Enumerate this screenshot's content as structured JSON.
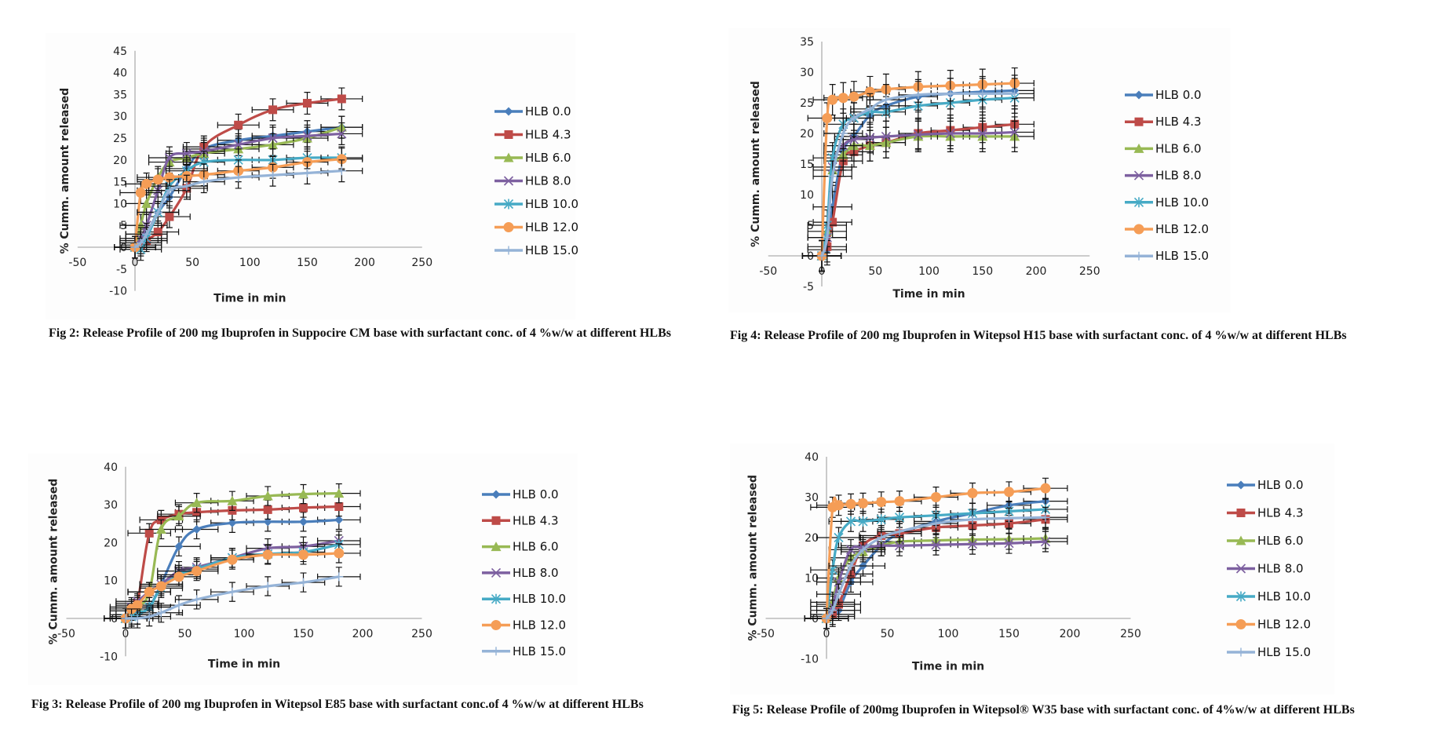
{
  "series_style": [
    {
      "name": "HLB 0.0",
      "color": "#4a7ebb",
      "marker": "diamond"
    },
    {
      "name": "HLB 4.3",
      "color": "#be4b48",
      "marker": "square"
    },
    {
      "name": "HLB 6.0",
      "color": "#98b954",
      "marker": "triangle"
    },
    {
      "name": "HLB 8.0",
      "color": "#7d60a0",
      "marker": "x"
    },
    {
      "name": "HLB 10.0",
      "color": "#46aac5",
      "marker": "star"
    },
    {
      "name": "HLB 12.0",
      "color": "#f59d56",
      "marker": "circle"
    },
    {
      "name": "HLB 15.0",
      "color": "#95b3d7",
      "marker": "plus"
    }
  ],
  "chart_data": [
    {
      "id": "fig2",
      "type": "line",
      "title": "",
      "caption": "Fig 2: Release Profile of 200 mg Ibuprofen in Suppocire CM base with surfactant conc. of 4 %w/w at different HLBs",
      "xlabel": "Time in min",
      "ylabel": "% Cumm. amount released",
      "xlim": [
        -50,
        250
      ],
      "ylim": [
        -10,
        45
      ],
      "xticks": [
        -50,
        0,
        50,
        100,
        150,
        200,
        250
      ],
      "yticks": [
        -10,
        -5,
        0,
        5,
        10,
        15,
        20,
        25,
        30,
        35,
        40,
        45
      ],
      "grid": false,
      "legend": "right",
      "error_bars": true,
      "x": [
        0,
        5,
        10,
        20,
        30,
        45,
        60,
        90,
        120,
        150,
        180
      ],
      "series": [
        {
          "name": "HLB 0.0",
          "values": [
            0,
            1.5,
            3,
            8,
            11.5,
            18,
            22.5,
            24.5,
            25.5,
            26.5,
            27.5
          ]
        },
        {
          "name": "HLB 4.3",
          "values": [
            0,
            0.5,
            1.5,
            3.5,
            7,
            13.5,
            23,
            28,
            31.5,
            33,
            34
          ]
        },
        {
          "name": "HLB 6.0",
          "values": [
            0,
            5,
            10,
            16,
            19.5,
            20.5,
            21.5,
            22.5,
            23.5,
            25,
            27.5
          ]
        },
        {
          "name": "HLB 8.0",
          "values": [
            0,
            2,
            5,
            13,
            20.5,
            21.5,
            22,
            23.5,
            25,
            25.5,
            26
          ]
        },
        {
          "name": "HLB 10.0",
          "values": [
            0,
            -0.5,
            2,
            8,
            14,
            17.5,
            19.5,
            20,
            20,
            20.5,
            20.5
          ]
        },
        {
          "name": "HLB 12.0",
          "values": [
            0,
            12.5,
            14.5,
            15.5,
            16,
            16.3,
            16.6,
            17.5,
            18.3,
            19.5,
            20.2
          ]
        },
        {
          "name": "HLB 15.0",
          "values": [
            0,
            1,
            3,
            8,
            13,
            14,
            15,
            16,
            16.5,
            17,
            17.5
          ]
        }
      ]
    },
    {
      "id": "fig4",
      "type": "line",
      "title": "",
      "caption": "Fig 4: Release Profile of 200 mg Ibuprofen in Witepsol H15 base with surfactant conc. of 4 %w/w at different HLBs",
      "xlabel": "Time in min",
      "ylabel": "% Cumm. amount released",
      "xlim": [
        -50,
        250
      ],
      "ylim": [
        -5,
        35
      ],
      "xticks": [
        -50,
        0,
        50,
        100,
        150,
        200,
        250
      ],
      "yticks": [
        -5,
        0,
        5,
        10,
        15,
        20,
        25,
        30,
        35
      ],
      "grid": false,
      "legend": "right",
      "error_bars": true,
      "x": [
        0,
        5,
        10,
        20,
        30,
        45,
        60,
        90,
        120,
        150,
        180
      ],
      "series": [
        {
          "name": "HLB 0.0",
          "values": [
            0,
            1,
            8,
            17,
            19.5,
            23,
            24.5,
            26,
            26.5,
            26.8,
            27
          ]
        },
        {
          "name": "HLB 4.3",
          "values": [
            0,
            1.5,
            5.5,
            15.5,
            17,
            18,
            18.5,
            20,
            20.5,
            21,
            21.5
          ]
        },
        {
          "name": "HLB 6.0",
          "values": [
            0,
            4,
            14,
            16.5,
            18,
            18,
            18.5,
            19.5,
            19.5,
            19.5,
            19.5
          ]
        },
        {
          "name": "HLB 8.0",
          "values": [
            0,
            3,
            14.5,
            18,
            19,
            19.3,
            19.5,
            19.8,
            20,
            20,
            20.2
          ]
        },
        {
          "name": "HLB 10.0",
          "values": [
            0,
            5,
            16,
            21.5,
            22.5,
            23.5,
            23.5,
            24.5,
            25,
            25.5,
            25.8
          ]
        },
        {
          "name": "HLB 12.0",
          "values": [
            0,
            22.5,
            25.5,
            25.8,
            26,
            26.8,
            27.2,
            27.6,
            27.8,
            28,
            28.2
          ]
        },
        {
          "name": "HLB 15.0",
          "values": [
            0,
            3,
            13,
            20,
            22.5,
            24,
            25.5,
            26.3,
            26.5,
            26.5,
            26.5
          ]
        }
      ]
    },
    {
      "id": "fig3",
      "type": "line",
      "title": "",
      "caption": "Fig 3: Release Profile of 200 mg Ibuprofen in Witepsol E85 base with surfactant conc.of 4 %w/w at different HLBs",
      "xlabel": "Time in min",
      "ylabel": "% Cumm. amount released",
      "xlim": [
        -50,
        250
      ],
      "ylim": [
        -10,
        40
      ],
      "xticks": [
        -50,
        0,
        50,
        100,
        150,
        200,
        250
      ],
      "yticks": [
        -10,
        0,
        10,
        20,
        30,
        40
      ],
      "grid": false,
      "legend": "right",
      "error_bars": true,
      "x": [
        0,
        5,
        10,
        20,
        30,
        45,
        60,
        90,
        120,
        150,
        180
      ],
      "series": [
        {
          "name": "HLB 0.0",
          "values": [
            0,
            0.5,
            1,
            3,
            9,
            19,
            23.5,
            25.2,
            25.5,
            25.5,
            26
          ]
        },
        {
          "name": "HLB 4.3",
          "values": [
            0,
            2,
            4,
            22.5,
            26,
            27.5,
            28,
            28.5,
            28.7,
            29.2,
            29.5
          ]
        },
        {
          "name": "HLB 6.0",
          "values": [
            0,
            1,
            3,
            7,
            23.5,
            27,
            30.5,
            31,
            32.3,
            32.8,
            33
          ]
        },
        {
          "name": "HLB 8.0",
          "values": [
            0,
            3,
            4.5,
            7,
            9,
            12.5,
            13.5,
            16,
            18.5,
            19,
            20.5
          ]
        },
        {
          "name": "HLB 10.0",
          "values": [
            0,
            0.5,
            1,
            3,
            8,
            11.5,
            13,
            16,
            17,
            17.5,
            19.5
          ]
        },
        {
          "name": "HLB 12.0",
          "values": [
            0,
            2.5,
            3.5,
            7,
            8.5,
            11,
            12.5,
            15.5,
            16.8,
            16.8,
            17.2
          ]
        },
        {
          "name": "HLB 15.0",
          "values": [
            0,
            0,
            0,
            0.5,
            1.5,
            3.5,
            5,
            7,
            8.5,
            9.5,
            11
          ]
        }
      ]
    },
    {
      "id": "fig5",
      "type": "line",
      "title": "",
      "caption": "Fig 5: Release Profile of 200mg Ibuprofen in Witepsol® W35 base with surfactant conc. of 4%w/w at different HLBs",
      "xlabel": "Time in min",
      "ylabel": "% Cumm. amount released",
      "xlim": [
        -50,
        250
      ],
      "ylim": [
        -10,
        40
      ],
      "xticks": [
        -50,
        0,
        50,
        100,
        150,
        200,
        250
      ],
      "yticks": [
        -10,
        0,
        10,
        20,
        30,
        40
      ],
      "grid": false,
      "legend": "right",
      "error_bars": true,
      "x": [
        0,
        5,
        10,
        20,
        30,
        45,
        60,
        90,
        120,
        150,
        180
      ],
      "series": [
        {
          "name": "HLB 0.0",
          "values": [
            0,
            0.5,
            2,
            9,
            13,
            18,
            21,
            24,
            26,
            28,
            29
          ]
        },
        {
          "name": "HLB 4.3",
          "values": [
            0,
            1,
            3.5,
            11,
            18,
            20.5,
            21,
            22.5,
            23,
            23.5,
            24.5
          ]
        },
        {
          "name": "HLB 6.0",
          "values": [
            0,
            4,
            10,
            15,
            16.5,
            18,
            19,
            19.3,
            19.5,
            19.6,
            19.8
          ]
        },
        {
          "name": "HLB 8.0",
          "values": [
            0,
            3,
            9,
            17,
            17.5,
            18,
            18,
            18.2,
            18.4,
            18.6,
            19
          ]
        },
        {
          "name": "HLB 10.0",
          "values": [
            0,
            12,
            20,
            24,
            24,
            24.5,
            25,
            25.5,
            26,
            26.5,
            27
          ]
        },
        {
          "name": "HLB 12.0",
          "values": [
            0,
            27.5,
            28,
            28.3,
            28.5,
            28.8,
            29,
            30,
            31,
            31.3,
            32.2
          ]
        },
        {
          "name": "HLB 15.0",
          "values": [
            0,
            2,
            6,
            13,
            17,
            20,
            21.5,
            23.5,
            24.5,
            24.8,
            25
          ]
        }
      ]
    }
  ]
}
